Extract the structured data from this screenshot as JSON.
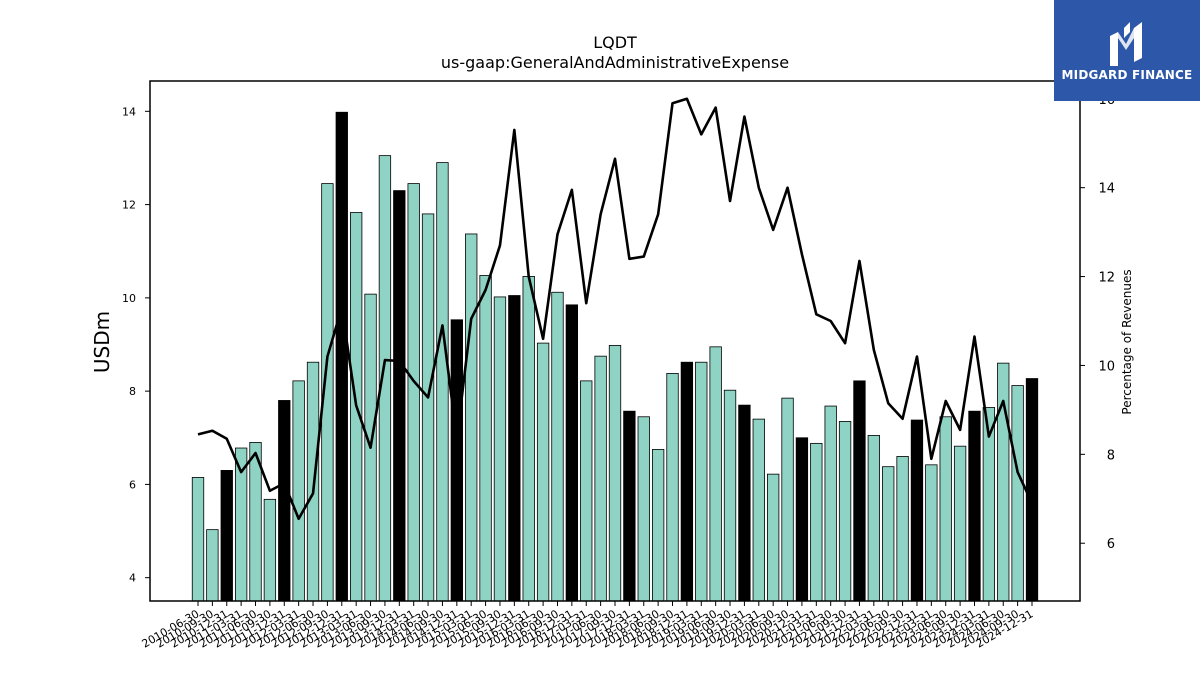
{
  "chart_data": {
    "type": "bar",
    "title": "LQDT",
    "subtitle": "us-gaap:GeneralAndAdministrativeExpense",
    "ylabel": "USDm",
    "ylabel_right": "Percentage of Revenues",
    "ylim": [
      3.5,
      14.65
    ],
    "ylim_right": [
      4.7,
      16.4
    ],
    "yticks": [
      4,
      6,
      8,
      10,
      12,
      14
    ],
    "yticks_right": [
      6,
      8,
      10,
      12,
      14,
      16
    ],
    "bar_color": "#8fd3c5",
    "highlight_color": "#000000",
    "line_color": "#000000",
    "categories": [
      "2010-06-30",
      "2010-09-30",
      "2010-12-31",
      "2011-03-31",
      "2011-06-30",
      "2011-09-30",
      "2011-12-31",
      "2012-03-31",
      "2012-06-30",
      "2012-09-30",
      "2012-12-31",
      "2013-03-31",
      "2013-06-30",
      "2013-09-30",
      "2013-12-31",
      "2014-03-31",
      "2014-06-30",
      "2014-09-30",
      "2014-12-31",
      "2015-03-31",
      "2015-06-30",
      "2015-09-30",
      "2015-12-31",
      "2016-03-31",
      "2016-06-30",
      "2016-09-30",
      "2016-12-31",
      "2017-03-31",
      "2017-06-30",
      "2017-09-30",
      "2017-12-31",
      "2018-03-31",
      "2018-06-30",
      "2018-09-30",
      "2018-12-31",
      "2019-03-31",
      "2019-06-30",
      "2019-09-30",
      "2019-12-31",
      "2020-03-31",
      "2020-06-30",
      "2020-09-30",
      "2020-12-31",
      "2021-03-31",
      "2021-06-30",
      "2021-09-30",
      "2021-12-31",
      "2022-03-31",
      "2022-06-30",
      "2022-09-30",
      "2022-12-31",
      "2023-03-31",
      "2023-06-30",
      "2023-09-30",
      "2023-12-31",
      "2024-03-31",
      "2024-06-30",
      "2024-09-30",
      "2024-12-31"
    ],
    "values": [
      6.15,
      5.03,
      6.3,
      6.78,
      6.9,
      5.68,
      7.8,
      8.22,
      8.62,
      12.45,
      13.98,
      11.83,
      10.08,
      13.05,
      12.3,
      12.45,
      11.8,
      12.9,
      9.53,
      11.37,
      10.48,
      10.02,
      10.05,
      10.46,
      9.03,
      10.12,
      9.85,
      8.22,
      8.75,
      8.98,
      7.57,
      7.45,
      6.75,
      8.38,
      8.62,
      8.62,
      8.95,
      8.02,
      7.7,
      7.4,
      6.22,
      7.85,
      7.0,
      6.88,
      7.68,
      7.35,
      8.22,
      7.05,
      6.38,
      6.6,
      7.38,
      6.42,
      7.45,
      6.82,
      7.57,
      7.65,
      8.6,
      8.12,
      8.27
    ],
    "highlight": [
      false,
      false,
      true,
      false,
      false,
      false,
      true,
      false,
      false,
      false,
      true,
      false,
      false,
      false,
      true,
      false,
      false,
      false,
      true,
      false,
      false,
      false,
      true,
      false,
      false,
      false,
      true,
      false,
      false,
      false,
      true,
      false,
      false,
      false,
      true,
      false,
      false,
      false,
      true,
      false,
      false,
      false,
      true,
      false,
      false,
      false,
      true,
      false,
      false,
      false,
      true,
      false,
      false,
      false,
      true,
      false,
      false,
      false,
      true
    ],
    "line_values": [
      8.45,
      8.53,
      8.35,
      7.6,
      8.03,
      7.18,
      7.35,
      6.55,
      7.12,
      10.2,
      11.3,
      9.1,
      8.15,
      10.12,
      10.1,
      9.65,
      9.28,
      10.9,
      8.35,
      11.05,
      11.7,
      12.7,
      15.3,
      12.0,
      10.6,
      12.95,
      13.95,
      11.4,
      13.4,
      14.65,
      12.4,
      12.45,
      13.4,
      15.9,
      16.0,
      15.2,
      15.8,
      13.7,
      15.6,
      14.0,
      13.05,
      14.0,
      12.5,
      11.15,
      11.0,
      10.5,
      12.35,
      10.35,
      9.15,
      8.8,
      10.2,
      7.9,
      9.2,
      8.55,
      10.65,
      8.4,
      9.2,
      7.6,
      6.9
    ]
  },
  "logo": {
    "text": "MIDGARD FINANCE",
    "background": "#2d57a8"
  }
}
